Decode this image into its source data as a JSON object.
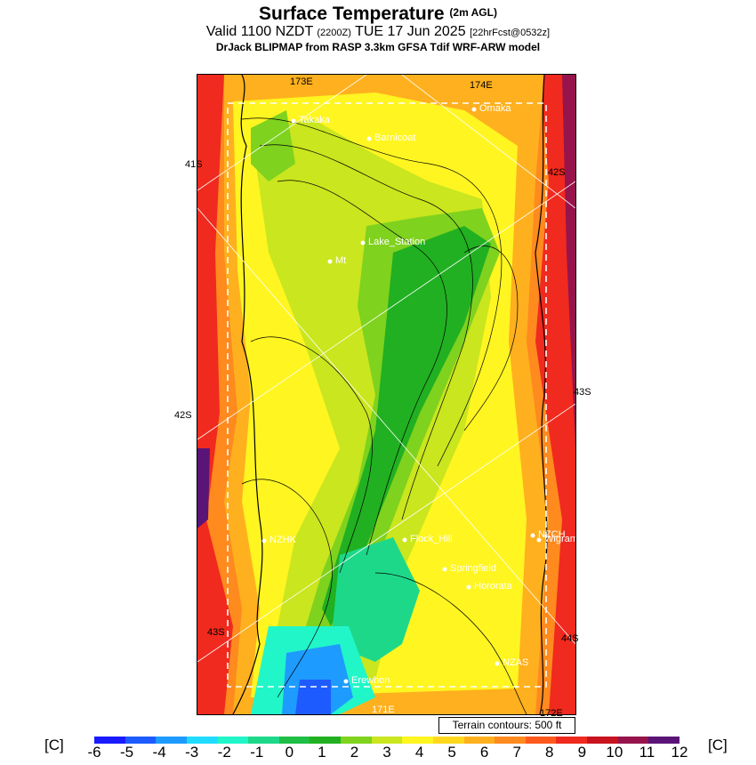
{
  "header": {
    "title": "Surface Temperature",
    "title_suffix": "(2m AGL)",
    "valid_prefix": "Valid 1100 NZDT",
    "valid_z": "(2200Z)",
    "valid_date": "TUE 17 Jun 2025",
    "forecast_tag": "[22hrFcst@0532z]",
    "model_line": "DrJack BLIPMAP from RASP 3.3km GFSA Tdif WRF-ARW model"
  },
  "map": {
    "grid_labels": {
      "top_left_lon": "173E",
      "top_right_lon": "174E",
      "left_41s": "41S",
      "right_42s": "42S",
      "right_43s": "43S",
      "left_42s": "42S",
      "left_43s": "43S",
      "right_44s": "44S",
      "bottom_lon_171": "171E",
      "bottom_lon_172": "172E"
    },
    "places": [
      {
        "name": "Takaka"
      },
      {
        "name": "Omaka"
      },
      {
        "name": "Barnicoat"
      },
      {
        "name": "Lake_Station"
      },
      {
        "name": "Mt"
      },
      {
        "name": "NZHK"
      },
      {
        "name": "Flock_Hill"
      },
      {
        "name": "NZCH"
      },
      {
        "name": "Wigram"
      },
      {
        "name": "Springfield"
      },
      {
        "name": "Hororata"
      },
      {
        "name": "NZAS"
      },
      {
        "name": "Erewhon"
      }
    ],
    "terrain_note": "Terrain contours: 500 ft"
  },
  "colorbar": {
    "unit_left": "[C]",
    "unit_right": "[C]",
    "ticks": [
      "-6",
      "-5",
      "-4",
      "-3",
      "-2",
      "-1",
      "0",
      "1",
      "2",
      "3",
      "4",
      "5",
      "6",
      "7",
      "8",
      "9",
      "10",
      "11",
      "12"
    ],
    "colors": [
      "#1a1aff",
      "#1e5bff",
      "#1e9bff",
      "#21dcff",
      "#21f6c8",
      "#1ed88a",
      "#1fbe45",
      "#21b021",
      "#7fd21e",
      "#c9e61e",
      "#fff521",
      "#ffd81e",
      "#ffb01e",
      "#ff8a1e",
      "#ff5a1e",
      "#f02a1e",
      "#c8121e",
      "#96144b",
      "#5a1478"
    ]
  }
}
